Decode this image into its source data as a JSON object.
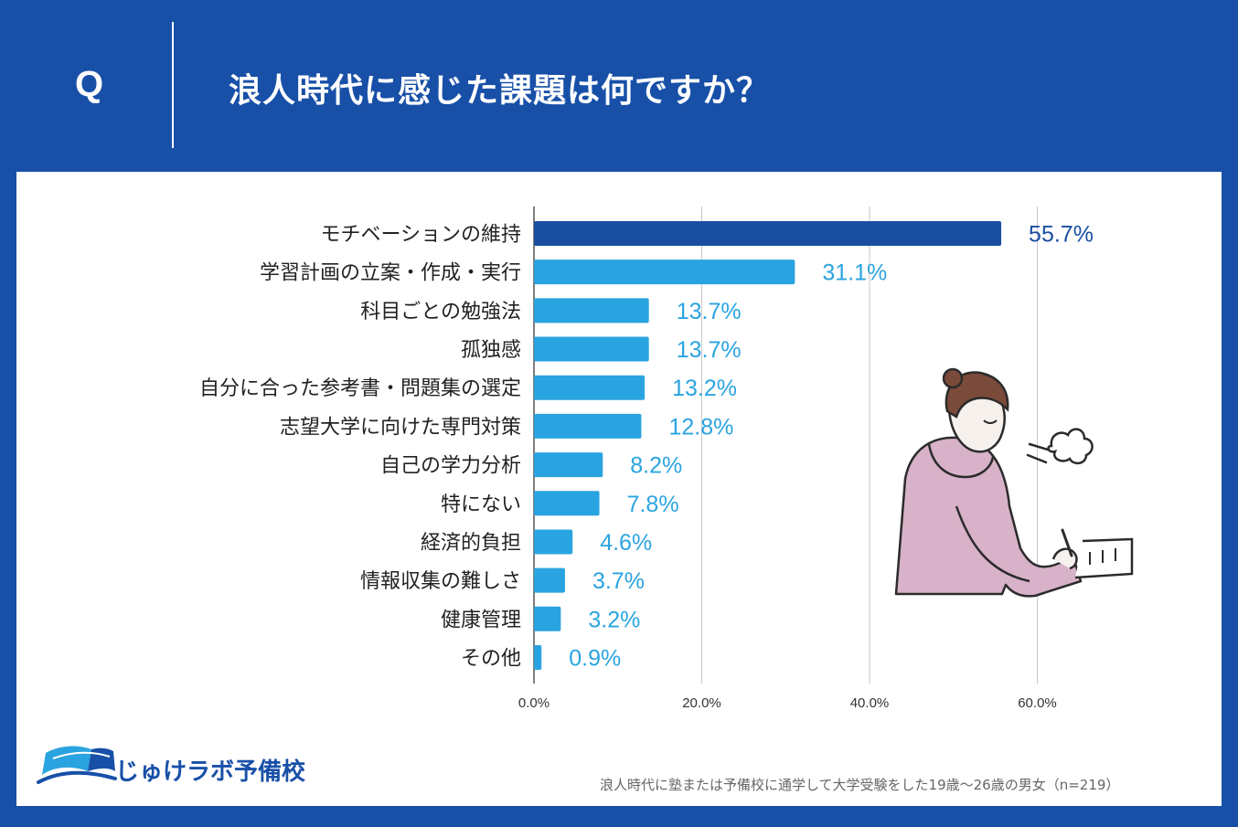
{
  "header": {
    "q_label": "Q",
    "title": "浪人時代に感じた課題は何ですか？"
  },
  "logo": {
    "text": "じゅけラボ予備校"
  },
  "footnote": "浪人時代に塾または予備校に通学して大学受験をした19歳〜26歳の男女（n=219）",
  "colors": {
    "background": "#1850a8",
    "bar_primary": "#1a4ea1",
    "bar_secondary": "#2aa4e0",
    "label_primary": "#1a4ea1",
    "label_secondary": "#2aa4e0",
    "grid": "#c8c8c8"
  },
  "chart_data": {
    "type": "bar",
    "orientation": "horizontal",
    "categories": [
      "モチベーションの維持",
      "学習計画の立案・作成・実行",
      "科目ごとの勉強法",
      "孤独感",
      "自分に合った参考書・問題集の選定",
      "志望大学に向けた専門対策",
      "自己の学力分析",
      "特にない",
      "経済的負担",
      "情報収集の難しさ",
      "健康管理",
      "その他"
    ],
    "values": [
      55.7,
      31.1,
      13.7,
      13.7,
      13.2,
      12.8,
      8.2,
      7.8,
      4.6,
      3.7,
      3.2,
      0.9
    ],
    "value_labels": [
      "55.7%",
      "31.1%",
      "13.7%",
      "13.7%",
      "13.2%",
      "12.8%",
      "8.2%",
      "7.8%",
      "4.6%",
      "3.7%",
      "3.2%",
      "0.9%"
    ],
    "xlim": [
      0,
      60
    ],
    "x_ticks": [
      0,
      20,
      40,
      60
    ],
    "x_tick_labels": [
      "0.0%",
      "20.0%",
      "40.0%",
      "60.0%"
    ],
    "grid": true,
    "legend": "none",
    "title": "",
    "xlabel": "",
    "ylabel": ""
  },
  "illustration": {
    "icon": "student-studying-sigh-illustration"
  }
}
